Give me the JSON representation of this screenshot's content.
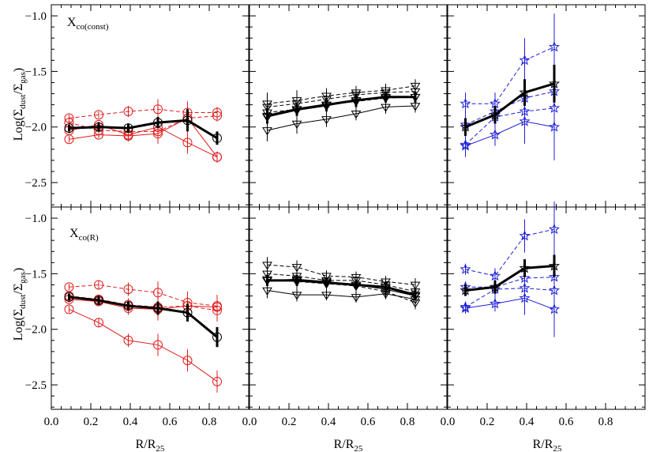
{
  "ylabel_main": "Log(Σ",
  "ylabel_sub1": "dust",
  "ylabel_mid": "/Σ",
  "ylabel_sub2": "gas",
  "ylabel_end": ")",
  "xlabel_main": "R/R",
  "xlabel_sub": "25",
  "row_labels": [
    {
      "main": "X",
      "sub": "co(const)"
    },
    {
      "main": "X",
      "sub": "co(R)"
    }
  ],
  "x_ticks": [
    "0.0",
    "0.2",
    "0.4",
    "0.6",
    "0.8"
  ],
  "y_ticks_top": [
    "-1.0",
    "-1.5",
    "-2.0",
    "-2.5"
  ],
  "y_ticks_bottom": [
    "-1.0",
    "-1.5",
    "-2.0",
    "-2.5"
  ],
  "colors": {
    "red": "#e01b1b",
    "black": "#000000",
    "blue": "#1e1ed8"
  },
  "chart_data": [
    {
      "type": "line",
      "row": 0,
      "col": 0,
      "marker": "circle",
      "color": "#e01b1b",
      "xlim": [
        0,
        1
      ],
      "ylim": [
        -2.72,
        -0.9
      ],
      "x": [
        0.09,
        0.24,
        0.39,
        0.54,
        0.69,
        0.84
      ],
      "series": [
        {
          "style": "dashed",
          "values": [
            -1.92,
            -1.89,
            -1.86,
            -1.84,
            -1.87,
            -1.87
          ]
        },
        {
          "style": "dashed",
          "values": [
            -1.96,
            -2.03,
            -2.04,
            -2.04,
            -1.92,
            -1.9
          ]
        },
        {
          "style": "solid",
          "values": [
            -2.03,
            -1.98,
            -2.07,
            -2.0,
            -2.14,
            -2.27
          ]
        },
        {
          "style": "solid",
          "values": [
            -2.11,
            -2.07,
            -2.08,
            -2.06,
            -1.92,
            -2.27
          ]
        }
      ],
      "errors": [
        0.03,
        0.03,
        0.05,
        0.09,
        0.1,
        0.05
      ],
      "mean": {
        "values": [
          -2.01,
          -2.0,
          -2.01,
          -1.96,
          -1.94,
          -2.1
        ],
        "errors": [
          0.03,
          0.04,
          0.04,
          0.05,
          0.1,
          0.06
        ]
      }
    },
    {
      "type": "line",
      "row": 0,
      "col": 1,
      "marker": "triangle-down",
      "color": "#000000",
      "xlim": [
        0,
        1
      ],
      "ylim": [
        -2.72,
        -0.9
      ],
      "x": [
        0.09,
        0.24,
        0.39,
        0.54,
        0.69,
        0.84
      ],
      "series": [
        {
          "style": "dashed",
          "values": [
            -1.79,
            -1.76,
            -1.72,
            -1.69,
            -1.67,
            -1.63
          ]
        },
        {
          "style": "dashed",
          "values": [
            -1.82,
            -1.79,
            -1.75,
            -1.71,
            -1.69,
            -1.68
          ]
        },
        {
          "style": "dashed",
          "values": [
            -1.87,
            -1.84,
            -1.8,
            -1.77,
            -1.74,
            -1.73
          ]
        },
        {
          "style": "solid",
          "values": [
            -1.91,
            -1.85,
            -1.81,
            -1.76,
            -1.73,
            -1.73
          ]
        },
        {
          "style": "solid",
          "values": [
            -2.03,
            -1.97,
            -1.93,
            -1.88,
            -1.82,
            -1.81
          ]
        }
      ],
      "errors": [
        0.1,
        0.09,
        0.07,
        0.06,
        0.06,
        0.06
      ],
      "mean": {
        "values": [
          -1.9,
          -1.84,
          -1.8,
          -1.76,
          -1.73,
          -1.73
        ],
        "errors": [
          0.07,
          0.06,
          0.06,
          0.06,
          0.05,
          0.05
        ]
      }
    },
    {
      "type": "line",
      "row": 0,
      "col": 2,
      "marker": "star",
      "color": "#1e1ed8",
      "xlim": [
        0,
        1
      ],
      "ylim": [
        -2.72,
        -0.9
      ],
      "x": [
        0.09,
        0.24,
        0.39,
        0.54
      ],
      "series": [
        {
          "style": "dashed",
          "values": [
            -1.79,
            -1.79,
            -1.4,
            -1.28
          ]
        },
        {
          "style": "dashed",
          "values": [
            -1.98,
            -1.86,
            -1.74,
            -1.68
          ]
        },
        {
          "style": "dashed",
          "values": [
            -2.16,
            -1.91,
            -1.86,
            -1.83
          ]
        },
        {
          "style": "solid",
          "values": [
            -2.17,
            -2.07,
            -1.95,
            -2.0
          ]
        }
      ],
      "errors": [
        0.1,
        0.1,
        0.2,
        0.3
      ],
      "mean": {
        "values": [
          -2.0,
          -1.89,
          -1.69,
          -1.61
        ],
        "errors": [
          0.08,
          0.08,
          0.12,
          0.17
        ]
      }
    },
    {
      "type": "line",
      "row": 1,
      "col": 0,
      "marker": "circle",
      "color": "#e01b1b",
      "xlim": [
        0,
        1
      ],
      "ylim": [
        -2.72,
        -0.9
      ],
      "x": [
        0.09,
        0.24,
        0.39,
        0.54,
        0.69,
        0.84
      ],
      "series": [
        {
          "style": "dashed",
          "values": [
            -1.62,
            -1.6,
            -1.64,
            -1.67,
            -1.76,
            -1.79
          ]
        },
        {
          "style": "dashed",
          "values": [
            -1.7,
            -1.73,
            -1.78,
            -1.8,
            -1.79,
            -1.83
          ]
        },
        {
          "style": "solid",
          "values": [
            -1.82,
            -1.94,
            -2.1,
            -2.14,
            -2.28,
            -2.47
          ]
        },
        {
          "style": "solid",
          "values": [
            -1.73,
            -1.75,
            -1.81,
            -1.82,
            -1.79,
            -1.8
          ]
        }
      ],
      "errors": [
        0.03,
        0.04,
        0.06,
        0.1,
        0.1,
        0.1
      ],
      "mean": {
        "values": [
          -1.71,
          -1.74,
          -1.79,
          -1.81,
          -1.85,
          -2.07
        ],
        "errors": [
          0.03,
          0.04,
          0.04,
          0.06,
          0.08,
          0.09
        ]
      }
    },
    {
      "type": "line",
      "row": 1,
      "col": 1,
      "marker": "triangle-down",
      "color": "#000000",
      "xlim": [
        0,
        1
      ],
      "ylim": [
        -2.72,
        -0.9
      ],
      "x": [
        0.09,
        0.24,
        0.39,
        0.54,
        0.69,
        0.84
      ],
      "series": [
        {
          "style": "dashed",
          "values": [
            -1.42,
            -1.44,
            -1.52,
            -1.53,
            -1.57,
            -1.6
          ]
        },
        {
          "style": "dashed",
          "values": [
            -1.5,
            -1.52,
            -1.56,
            -1.56,
            -1.6,
            -1.66
          ]
        },
        {
          "style": "dashed",
          "values": [
            -1.55,
            -1.57,
            -1.59,
            -1.61,
            -1.66,
            -1.76
          ]
        },
        {
          "style": "solid",
          "values": [
            -1.56,
            -1.55,
            -1.57,
            -1.6,
            -1.64,
            -1.7
          ]
        },
        {
          "style": "solid",
          "values": [
            -1.65,
            -1.69,
            -1.69,
            -1.71,
            -1.68,
            -1.73
          ]
        }
      ],
      "errors": [
        0.07,
        0.06,
        0.05,
        0.05,
        0.05,
        0.06
      ],
      "mean": {
        "values": [
          -1.56,
          -1.56,
          -1.58,
          -1.6,
          -1.62,
          -1.69
        ],
        "errors": [
          0.05,
          0.05,
          0.04,
          0.04,
          0.05,
          0.05
        ]
      }
    },
    {
      "type": "line",
      "row": 1,
      "col": 2,
      "marker": "star",
      "color": "#1e1ed8",
      "xlim": [
        0,
        1
      ],
      "ylim": [
        -2.72,
        -0.9
      ],
      "x": [
        0.09,
        0.24,
        0.39,
        0.54
      ],
      "series": [
        {
          "style": "dashed",
          "values": [
            -1.46,
            -1.52,
            -1.16,
            -1.1
          ]
        },
        {
          "style": "dashed",
          "values": [
            -1.62,
            -1.62,
            -1.54,
            -1.53
          ]
        },
        {
          "style": "dashed",
          "values": [
            -1.8,
            -1.64,
            -1.63,
            -1.65
          ]
        },
        {
          "style": "solid",
          "values": [
            -1.81,
            -1.77,
            -1.72,
            -1.82
          ]
        }
      ],
      "errors": [
        0.05,
        0.07,
        0.15,
        0.25
      ],
      "mean": {
        "values": [
          -1.65,
          -1.62,
          -1.45,
          -1.43
        ],
        "errors": [
          0.05,
          0.06,
          0.08,
          0.1
        ]
      }
    }
  ]
}
